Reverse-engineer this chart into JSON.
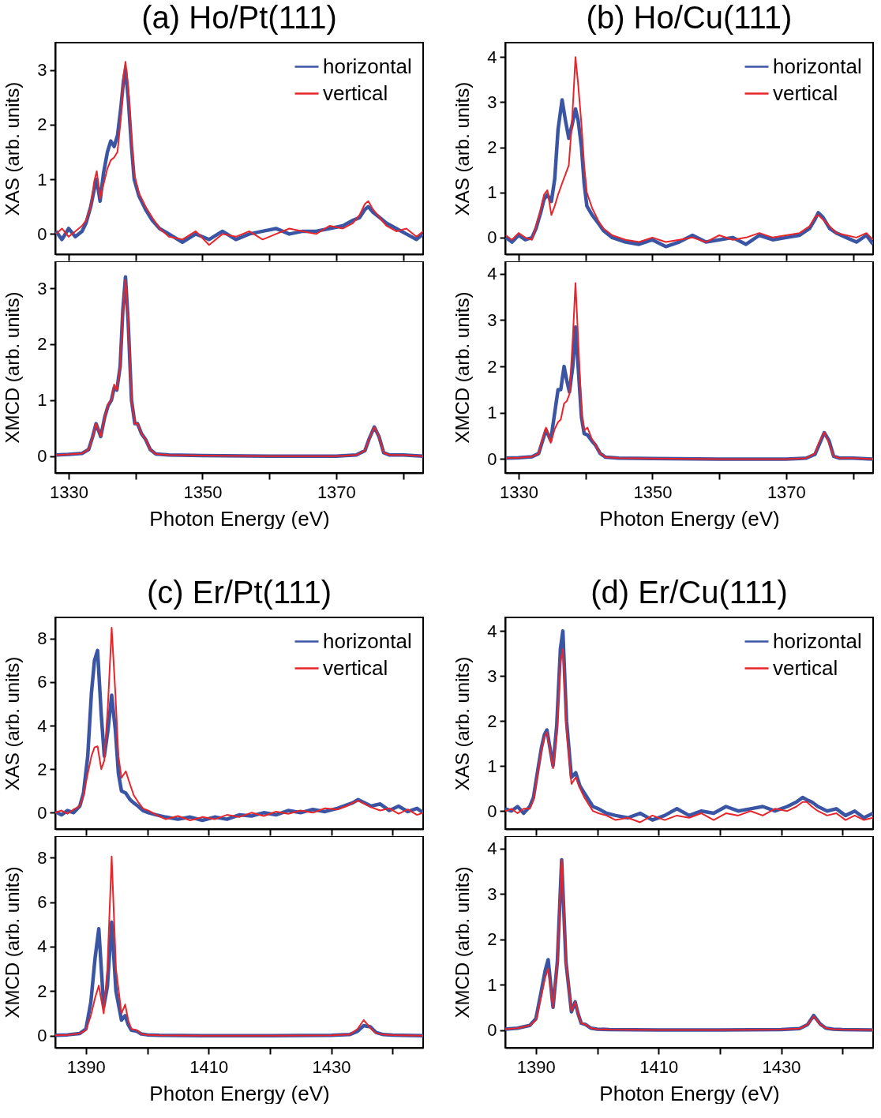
{
  "chart_data": [
    {
      "type": "line",
      "title": "(a) Ho/Pt(111)",
      "ylabel": "XAS (arb. units)",
      "legend": "top right",
      "line_style": "solid",
      "tick_labels": "y",
      "xlim": [
        1328,
        1383
      ],
      "xticks": [
        1330,
        {
          "value": 1340,
          "label": null
        },
        1350,
        {
          "value": 1360,
          "label": null
        },
        1370,
        {
          "value": 1380,
          "label": null
        }
      ],
      "ylim": [
        -0.37,
        3.5
      ],
      "yticks": [
        0,
        1,
        2,
        3
      ],
      "x": [
        1328.1,
        1329,
        1330,
        1331,
        1332,
        1332.6,
        1333.3,
        1333.8,
        1334.2,
        1334.7,
        1335.2,
        1335.8,
        1336.3,
        1336.8,
        1337.3,
        1337.8,
        1338.2,
        1338.5,
        1338.9,
        1339.4,
        1339.8,
        1340.5,
        1341.5,
        1342.5,
        1343.6,
        1345,
        1347,
        1349,
        1351,
        1353,
        1355,
        1357,
        1359,
        1361,
        1363,
        1365,
        1367,
        1369,
        1371,
        1372.5,
        1373.5,
        1374.3,
        1374.8,
        1375.5,
        1376.5,
        1377.5,
        1379,
        1380.5,
        1382,
        1383
      ],
      "series": [
        {
          "name": "horizontal",
          "color": "#3a55a4",
          "values": [
            0.05,
            -0.1,
            0.1,
            -0.05,
            0.05,
            0.2,
            0.5,
            0.8,
            1.0,
            0.6,
            1.1,
            1.5,
            1.7,
            1.6,
            1.8,
            2.3,
            2.8,
            3.0,
            2.5,
            1.6,
            1.0,
            0.7,
            0.45,
            0.25,
            0.1,
            0.0,
            -0.15,
            0.0,
            -0.1,
            0.05,
            -0.1,
            0.0,
            0.05,
            0.1,
            0.0,
            0.05,
            0.05,
            0.1,
            0.15,
            0.25,
            0.3,
            0.45,
            0.5,
            0.4,
            0.3,
            0.2,
            0.1,
            0.0,
            -0.1,
            0.0
          ]
        },
        {
          "name": "vertical",
          "color": "#e8252a",
          "values": [
            0.0,
            0.1,
            -0.05,
            0.05,
            0.15,
            0.25,
            0.5,
            0.95,
            1.15,
            0.65,
            0.9,
            1.2,
            1.35,
            1.4,
            1.5,
            2.1,
            2.9,
            3.15,
            2.7,
            1.7,
            1.1,
            0.75,
            0.5,
            0.3,
            0.1,
            -0.05,
            -0.1,
            0.05,
            -0.2,
            0.0,
            -0.05,
            0.05,
            -0.1,
            0.0,
            0.1,
            0.05,
            0.0,
            0.15,
            0.1,
            0.2,
            0.35,
            0.55,
            0.6,
            0.45,
            0.3,
            0.15,
            0.05,
            0.1,
            -0.05,
            0.05
          ]
        }
      ]
    },
    {
      "type": "line",
      "ylabel": "XMCD (arb. units)",
      "xlabel": "Photon Energy (eV)",
      "line_style": "solid",
      "xlim": [
        1328,
        1383
      ],
      "xticks": [
        1330,
        {
          "value": 1340,
          "label": null
        },
        1350,
        {
          "value": 1360,
          "label": null
        },
        1370,
        {
          "value": 1380,
          "label": null
        }
      ],
      "ylim": [
        -0.3,
        3.48
      ],
      "yticks": [
        0,
        1,
        2,
        3
      ],
      "x": [
        1328.1,
        1330,
        1332,
        1333,
        1333.6,
        1334.1,
        1334.8,
        1335.4,
        1335.9,
        1336.4,
        1336.8,
        1337.2,
        1337.7,
        1338.1,
        1338.5,
        1338.9,
        1339.4,
        1339.9,
        1340.3,
        1340.9,
        1341.5,
        1342.2,
        1343,
        1345,
        1350,
        1360,
        1370,
        1373,
        1374.3,
        1374.9,
        1375.7,
        1376.4,
        1377.1,
        1378,
        1380,
        1383
      ],
      "series": [
        {
          "color": "#3a55a4",
          "values": [
            0.02,
            0.03,
            0.05,
            0.12,
            0.35,
            0.58,
            0.35,
            0.7,
            0.9,
            1.0,
            1.22,
            1.18,
            1.6,
            2.6,
            3.2,
            2.4,
            1.0,
            0.58,
            0.58,
            0.4,
            0.3,
            0.12,
            0.04,
            0.02,
            0.01,
            0.0,
            0.0,
            0.02,
            0.1,
            0.3,
            0.52,
            0.35,
            0.06,
            0.02,
            0.02,
            0.0
          ]
        },
        {
          "color": "#e8252a",
          "values": [
            0.02,
            0.03,
            0.05,
            0.12,
            0.35,
            0.58,
            0.35,
            0.7,
            0.93,
            1.0,
            1.28,
            1.18,
            1.6,
            2.6,
            3.15,
            2.4,
            1.0,
            0.58,
            0.58,
            0.4,
            0.3,
            0.12,
            0.04,
            0.02,
            0.01,
            0.0,
            0.0,
            0.02,
            0.1,
            0.3,
            0.52,
            0.35,
            0.06,
            0.02,
            0.02,
            0.0
          ]
        }
      ]
    },
    {
      "type": "line",
      "title": "(b) Ho/Cu(111)",
      "ylabel": "XAS (arb. units)",
      "legend": "top right",
      "line_style": "solid",
      "tick_labels": "y",
      "xlim": [
        1328,
        1383
      ],
      "xticks": [
        1330,
        {
          "value": 1340,
          "label": null
        },
        1350,
        {
          "value": 1360,
          "label": null
        },
        1370,
        {
          "value": 1380,
          "label": null
        }
      ],
      "ylim": [
        -0.37,
        4.32
      ],
      "yticks": [
        0,
        1,
        2,
        3,
        4
      ],
      "x": [
        1328.1,
        1329,
        1330,
        1331,
        1332,
        1332.6,
        1333.3,
        1333.8,
        1334.3,
        1334.9,
        1335.4,
        1335.9,
        1336.5,
        1337,
        1337.5,
        1338,
        1338.5,
        1338.9,
        1339.4,
        1339.8,
        1340.2,
        1341,
        1342,
        1342.7,
        1344,
        1346,
        1348,
        1350,
        1352,
        1354,
        1356,
        1358,
        1360,
        1362,
        1364,
        1366,
        1368,
        1370,
        1372,
        1373.5,
        1374.3,
        1374.8,
        1375.5,
        1376.5,
        1377.5,
        1379,
        1380.5,
        1382,
        1383
      ],
      "series": [
        {
          "name": "horizontal",
          "color": "#3a55a4",
          "values": [
            0.0,
            -0.1,
            0.05,
            -0.05,
            0.0,
            0.2,
            0.55,
            0.85,
            0.95,
            0.8,
            1.3,
            2.4,
            3.05,
            2.6,
            2.2,
            2.5,
            2.85,
            2.6,
            2.0,
            1.2,
            0.7,
            0.5,
            0.3,
            0.15,
            0.0,
            -0.1,
            -0.15,
            -0.05,
            -0.2,
            -0.1,
            0.05,
            -0.1,
            -0.05,
            0.0,
            -0.15,
            0.05,
            -0.05,
            0.0,
            0.05,
            0.2,
            0.4,
            0.55,
            0.45,
            0.2,
            0.1,
            0.0,
            -0.1,
            0.05,
            -0.15
          ]
        },
        {
          "name": "vertical",
          "color": "#e8252a",
          "values": [
            0.05,
            -0.05,
            0.1,
            0.0,
            -0.05,
            0.25,
            0.6,
            0.95,
            1.05,
            0.5,
            0.7,
            0.95,
            1.2,
            1.4,
            1.6,
            2.6,
            4.0,
            3.4,
            2.5,
            1.6,
            1.0,
            0.65,
            0.35,
            0.2,
            0.05,
            -0.05,
            -0.1,
            0.0,
            -0.1,
            -0.05,
            0.0,
            -0.1,
            0.05,
            -0.05,
            0.0,
            0.1,
            0.0,
            0.05,
            0.1,
            0.25,
            0.45,
            0.5,
            0.4,
            0.25,
            0.1,
            0.05,
            0.0,
            0.1,
            -0.05
          ]
        }
      ]
    },
    {
      "type": "line",
      "ylabel": "XMCD (arb. units)",
      "xlabel": "Photon Energy (eV)",
      "line_style": "solid",
      "xlim": [
        1328,
        1383
      ],
      "xticks": [
        1330,
        {
          "value": 1340,
          "label": null
        },
        1350,
        {
          "value": 1360,
          "label": null
        },
        1370,
        {
          "value": 1380,
          "label": null
        }
      ],
      "ylim": [
        -0.3,
        4.27
      ],
      "yticks": [
        0,
        1,
        2,
        3,
        4
      ],
      "x": [
        1328.1,
        1330,
        1332,
        1333,
        1333.6,
        1334.1,
        1334.8,
        1335.4,
        1335.9,
        1336.3,
        1336.8,
        1337.2,
        1337.6,
        1338.1,
        1338.5,
        1338.9,
        1339.4,
        1339.8,
        1340.3,
        1340.9,
        1341.5,
        1342.2,
        1343,
        1345,
        1350,
        1360,
        1370,
        1373,
        1374.3,
        1374.9,
        1375.7,
        1376.4,
        1377.1,
        1378,
        1380,
        1383
      ],
      "series": [
        {
          "color": "#3a55a4",
          "values": [
            0.02,
            0.03,
            0.05,
            0.12,
            0.4,
            0.63,
            0.4,
            1.0,
            1.5,
            1.5,
            2.0,
            1.7,
            1.45,
            2.0,
            2.85,
            2.0,
            0.9,
            0.55,
            0.52,
            0.4,
            0.3,
            0.12,
            0.04,
            0.02,
            0.01,
            0.0,
            0.0,
            0.02,
            0.1,
            0.3,
            0.57,
            0.4,
            0.06,
            0.02,
            0.02,
            0.0
          ]
        },
        {
          "color": "#e8252a",
          "values": [
            0.02,
            0.03,
            0.05,
            0.12,
            0.45,
            0.68,
            0.35,
            0.65,
            0.8,
            0.85,
            1.2,
            1.25,
            1.4,
            2.6,
            3.8,
            2.6,
            1.0,
            0.62,
            0.68,
            0.45,
            0.3,
            0.12,
            0.04,
            0.02,
            0.01,
            0.0,
            0.0,
            0.02,
            0.12,
            0.35,
            0.58,
            0.35,
            0.06,
            0.02,
            0.02,
            0.0
          ]
        }
      ]
    },
    {
      "type": "line",
      "title": "(c) Er/Pt(111)",
      "ylabel": "XAS (arb. units)",
      "legend": "top right",
      "line_style": "solid",
      "tick_labels": "y",
      "xlim": [
        1385,
        1445
      ],
      "xticks": [
        1390,
        {
          "value": 1400,
          "label": null
        },
        1410,
        {
          "value": 1420,
          "label": null
        },
        1430,
        {
          "value": 1440,
          "label": null
        }
      ],
      "ylim": [
        -0.75,
        8.97
      ],
      "yticks": [
        0,
        2,
        4,
        6,
        8
      ],
      "x": [
        1385,
        1386,
        1387,
        1388,
        1389,
        1389.6,
        1390.3,
        1390.9,
        1391.4,
        1391.9,
        1392.5,
        1393,
        1393.6,
        1394.2,
        1394.8,
        1395.3,
        1395.8,
        1396.5,
        1397.2,
        1397.8,
        1398.5,
        1399.3,
        1400.2,
        1401.5,
        1403,
        1405,
        1407,
        1409,
        1411,
        1413,
        1415,
        1417,
        1419,
        1421,
        1423,
        1425,
        1427,
        1429,
        1431,
        1432.5,
        1433.5,
        1434.4,
        1435.5,
        1436.5,
        1438,
        1439.5,
        1441,
        1442.5,
        1444,
        1445
      ],
      "series": [
        {
          "name": "horizontal",
          "color": "#3a55a4",
          "values": [
            0.05,
            -0.1,
            0.1,
            0.0,
            0.3,
            0.9,
            2.6,
            5.5,
            7.0,
            7.45,
            4.5,
            2.6,
            3.8,
            5.4,
            3.8,
            1.8,
            1.0,
            0.9,
            0.6,
            0.45,
            0.3,
            0.1,
            0.0,
            -0.1,
            -0.2,
            -0.3,
            -0.2,
            -0.35,
            -0.2,
            -0.3,
            -0.1,
            -0.15,
            0.0,
            -0.1,
            0.1,
            0.0,
            0.15,
            0.05,
            0.2,
            0.35,
            0.45,
            0.6,
            0.45,
            0.3,
            0.4,
            0.1,
            0.3,
            0.05,
            0.2,
            0.0
          ]
        },
        {
          "name": "vertical",
          "color": "#e8252a",
          "values": [
            0.0,
            0.1,
            -0.05,
            0.15,
            0.3,
            0.8,
            1.8,
            2.6,
            3.0,
            3.05,
            2.0,
            2.4,
            5.0,
            8.5,
            5.5,
            2.6,
            1.6,
            1.9,
            1.3,
            0.8,
            0.5,
            0.2,
            0.1,
            -0.1,
            -0.3,
            -0.15,
            -0.35,
            -0.2,
            -0.3,
            -0.1,
            -0.2,
            0.0,
            -0.15,
            0.05,
            -0.05,
            0.1,
            0.0,
            0.2,
            0.15,
            0.3,
            0.45,
            0.55,
            0.4,
            0.25,
            0.1,
            0.2,
            -0.05,
            0.15,
            -0.1,
            0.0
          ]
        }
      ]
    },
    {
      "type": "line",
      "ylabel": "XMCD (arb. units)",
      "xlabel": "Photon Energy (eV)",
      "line_style": "solid",
      "xlim": [
        1385,
        1445
      ],
      "xticks": [
        1390,
        {
          "value": 1400,
          "label": null
        },
        1410,
        {
          "value": 1420,
          "label": null
        },
        1430,
        {
          "value": 1440,
          "label": null
        }
      ],
      "ylim": [
        -0.54,
        8.96
      ],
      "yticks": [
        0,
        2,
        4,
        6,
        8
      ],
      "x": [
        1385,
        1387,
        1389,
        1390,
        1390.8,
        1391.5,
        1392.1,
        1392.9,
        1393.5,
        1394.2,
        1394.9,
        1395.8,
        1396.4,
        1396.9,
        1397.4,
        1398.3,
        1399,
        1400,
        1402,
        1410,
        1420,
        1430,
        1433,
        1434.3,
        1435.3,
        1436.4,
        1437.3,
        1438.5,
        1440,
        1445
      ],
      "series": [
        {
          "color": "#3a55a4",
          "values": [
            0.02,
            0.04,
            0.1,
            0.3,
            1.5,
            3.5,
            4.8,
            1.3,
            2.2,
            5.1,
            2.0,
            0.7,
            0.9,
            0.5,
            0.25,
            0.2,
            0.08,
            0.04,
            0.02,
            0.0,
            0.0,
            0.02,
            0.05,
            0.2,
            0.45,
            0.4,
            0.15,
            0.05,
            0.03,
            0.0
          ]
        },
        {
          "color": "#e8252a",
          "values": [
            0.02,
            0.04,
            0.1,
            0.25,
            0.9,
            1.7,
            2.25,
            1.0,
            3.0,
            8.05,
            3.0,
            1.0,
            1.4,
            0.7,
            0.3,
            0.25,
            0.08,
            0.04,
            0.02,
            0.0,
            0.0,
            0.02,
            0.05,
            0.3,
            0.7,
            0.35,
            0.12,
            0.05,
            0.03,
            0.0
          ]
        }
      ]
    },
    {
      "type": "line",
      "title": "(d) Er/Cu(111)",
      "ylabel": "XAS (arb. units)",
      "legend": "top right",
      "line_style": "solid",
      "tick_labels": "y",
      "xlim": [
        1385,
        1445
      ],
      "xticks": [
        1390,
        {
          "value": 1400,
          "label": null
        },
        1410,
        {
          "value": 1420,
          "label": null
        },
        1430,
        {
          "value": 1440,
          "label": null
        }
      ],
      "ylim": [
        -0.4,
        4.3
      ],
      "yticks": [
        0,
        1,
        2,
        3,
        4
      ],
      "x": [
        1385,
        1386,
        1387,
        1388,
        1389,
        1389.6,
        1390.3,
        1390.9,
        1391.4,
        1391.8,
        1392.3,
        1392.8,
        1393.4,
        1394,
        1394.4,
        1395,
        1395.8,
        1396.5,
        1397.2,
        1397.9,
        1398.6,
        1399.3,
        1400.2,
        1401.5,
        1403,
        1405,
        1407,
        1409,
        1411,
        1413,
        1415,
        1417,
        1419,
        1421,
        1423,
        1425,
        1427,
        1429,
        1431,
        1432.5,
        1433.5,
        1434.2,
        1435,
        1436,
        1437.5,
        1439,
        1440.5,
        1442,
        1443.5,
        1445
      ],
      "series": [
        {
          "name": "horizontal",
          "color": "#3a55a4",
          "values": [
            0.05,
            0.0,
            0.1,
            -0.05,
            0.1,
            0.3,
            0.9,
            1.4,
            1.7,
            1.8,
            1.4,
            1.0,
            1.9,
            3.6,
            4.0,
            2.0,
            0.75,
            0.85,
            0.55,
            0.4,
            0.25,
            0.1,
            0.05,
            -0.05,
            -0.1,
            -0.15,
            -0.05,
            -0.2,
            -0.1,
            0.05,
            -0.1,
            0.0,
            -0.05,
            0.1,
            0.0,
            0.05,
            0.1,
            0.0,
            0.1,
            0.2,
            0.3,
            0.25,
            0.2,
            0.1,
            0.0,
            0.05,
            -0.1,
            0.0,
            -0.15,
            -0.05
          ]
        },
        {
          "name": "vertical",
          "color": "#e8252a",
          "values": [
            0.0,
            0.05,
            -0.05,
            0.05,
            0.05,
            0.25,
            0.85,
            1.35,
            1.65,
            1.75,
            1.35,
            0.95,
            1.7,
            3.3,
            3.6,
            1.8,
            0.6,
            0.75,
            0.5,
            0.3,
            0.15,
            0.0,
            -0.05,
            -0.1,
            -0.2,
            -0.15,
            -0.25,
            -0.1,
            -0.2,
            -0.1,
            -0.15,
            -0.05,
            -0.2,
            -0.05,
            -0.1,
            0.0,
            -0.1,
            0.05,
            0.0,
            0.1,
            0.2,
            0.2,
            0.1,
            0.0,
            -0.1,
            -0.05,
            -0.2,
            -0.1,
            -0.2,
            -0.15
          ]
        }
      ]
    },
    {
      "type": "line",
      "ylabel": "XMCD (arb. units)",
      "xlabel": "Photon Energy (eV)",
      "line_style": "solid",
      "xlim": [
        1385,
        1445
      ],
      "xticks": [
        1390,
        {
          "value": 1400,
          "label": null
        },
        1410,
        {
          "value": 1420,
          "label": null
        },
        1430,
        {
          "value": 1440,
          "label": null
        }
      ],
      "ylim": [
        -0.39,
        4.27
      ],
      "yticks": [
        0,
        1,
        2,
        3,
        4
      ],
      "x": [
        1385,
        1387,
        1389,
        1390,
        1390.8,
        1391.5,
        1392,
        1392.8,
        1393.5,
        1394.2,
        1394.9,
        1395.8,
        1396.4,
        1396.9,
        1397.4,
        1398.1,
        1399,
        1400,
        1402,
        1410,
        1420,
        1430,
        1433,
        1434.3,
        1435.3,
        1436.4,
        1437.3,
        1438.5,
        1440,
        1445
      ],
      "series": [
        {
          "color": "#3a55a4",
          "values": [
            0.02,
            0.04,
            0.1,
            0.25,
            0.8,
            1.3,
            1.55,
            0.5,
            1.5,
            3.75,
            1.5,
            0.4,
            0.62,
            0.35,
            0.15,
            0.12,
            0.04,
            0.02,
            0.01,
            0.0,
            0.0,
            0.01,
            0.03,
            0.12,
            0.32,
            0.13,
            0.04,
            0.02,
            0.01,
            0.0
          ]
        },
        {
          "color": "#e8252a",
          "values": [
            0.02,
            0.04,
            0.1,
            0.22,
            0.7,
            1.15,
            1.35,
            0.5,
            1.5,
            3.75,
            1.5,
            0.42,
            0.62,
            0.35,
            0.15,
            0.12,
            0.04,
            0.02,
            0.01,
            0.0,
            0.0,
            0.01,
            0.03,
            0.12,
            0.3,
            0.12,
            0.04,
            0.02,
            0.01,
            0.0
          ]
        }
      ]
    }
  ]
}
